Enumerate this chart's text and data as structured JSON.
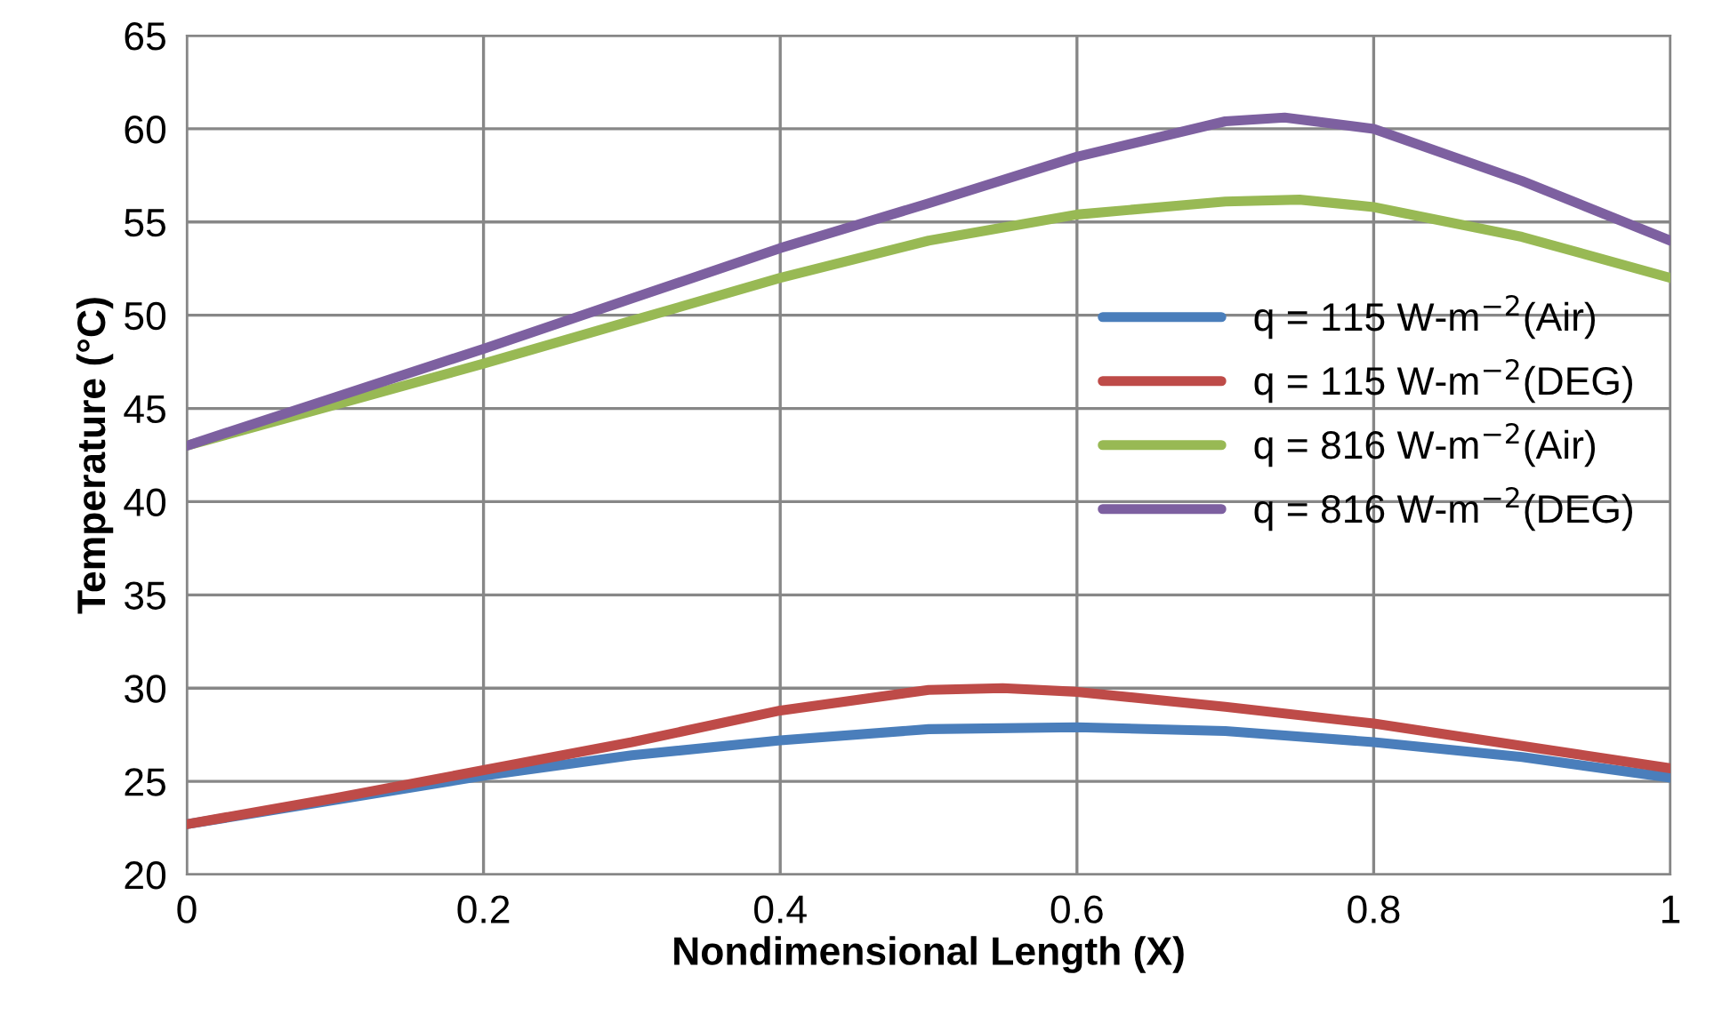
{
  "chart_data": {
    "type": "line",
    "xlabel": "Nondimensional Length (X)",
    "ylabel": "Temperature (°C)",
    "xlim": [
      0,
      1
    ],
    "xticks": [
      0,
      0.2,
      0.4,
      0.6,
      0.8,
      1
    ],
    "ylim": [
      20,
      65
    ],
    "yticks": [
      20,
      25,
      30,
      35,
      40,
      45,
      50,
      55,
      60,
      65
    ],
    "grid": true,
    "legend": "right",
    "marker": "none",
    "line_style": "solid",
    "series": [
      {
        "name": "q = 115 W-m$^{−2}$(Air)",
        "color": "#4a7ebb",
        "x": [
          0,
          0.1,
          0.2,
          0.3,
          0.4,
          0.5,
          0.6,
          0.7,
          0.8,
          0.9,
          1
        ],
        "values": [
          22.7,
          24.0,
          25.3,
          26.4,
          27.2,
          27.8,
          27.9,
          27.7,
          27.1,
          26.3,
          25.2
        ]
      },
      {
        "name": "q = 115 W-m$^{−2}$(DEG)",
        "color": "#be4b48",
        "x": [
          0,
          0.1,
          0.2,
          0.3,
          0.4,
          0.5,
          0.55,
          0.6,
          0.7,
          0.8,
          0.9,
          1
        ],
        "values": [
          22.7,
          24.1,
          25.6,
          27.1,
          28.8,
          29.9,
          30.0,
          29.8,
          29.0,
          28.1,
          26.9,
          25.7
        ]
      },
      {
        "name": "q = 816 W-m$^{−2}$(Air)",
        "color": "#98b954",
        "x": [
          0,
          0.1,
          0.2,
          0.3,
          0.4,
          0.5,
          0.6,
          0.7,
          0.75,
          0.8,
          0.9,
          1
        ],
        "values": [
          43.0,
          45.2,
          47.4,
          49.7,
          52.0,
          54.0,
          55.4,
          56.1,
          56.2,
          55.8,
          54.2,
          52.0
        ]
      },
      {
        "name": "q = 816 W-m$^{−2}$(DEG)",
        "color": "#7d60a0",
        "x": [
          0,
          0.1,
          0.2,
          0.3,
          0.4,
          0.5,
          0.6,
          0.7,
          0.74,
          0.8,
          0.9,
          1
        ],
        "values": [
          43.0,
          45.6,
          48.2,
          50.9,
          53.6,
          56.0,
          58.5,
          60.4,
          60.6,
          60.0,
          57.2,
          54.0
        ]
      }
    ]
  }
}
